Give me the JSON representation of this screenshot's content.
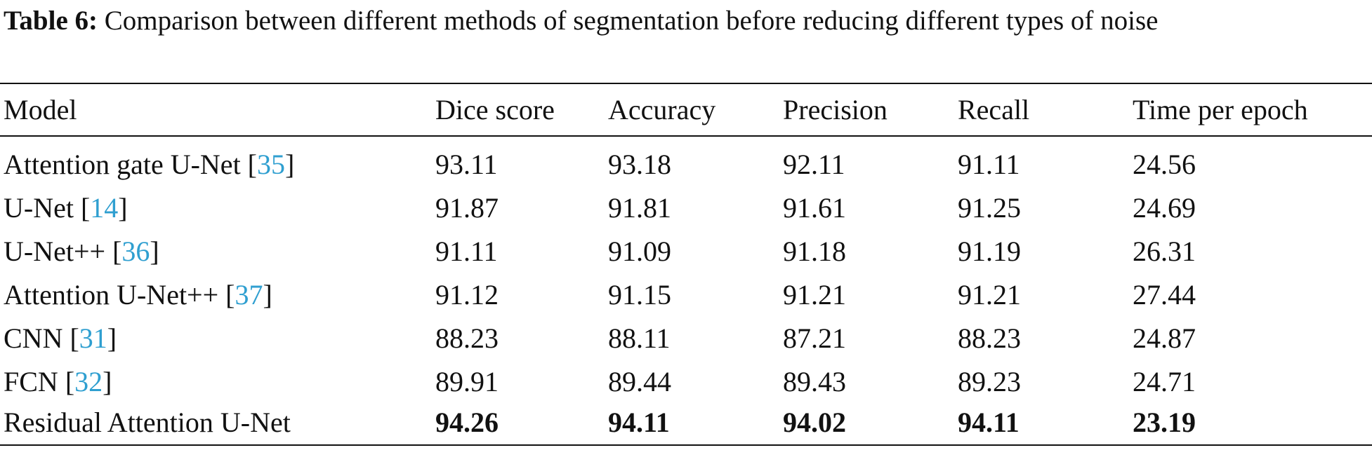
{
  "caption": {
    "label": "Table 6:",
    "text": "Comparison between different methods of segmentation before reducing different types of noise"
  },
  "table": {
    "headers": [
      "Model",
      "Dice score",
      "Accuracy",
      "Precision",
      "Recall",
      "Time per epoch"
    ],
    "rows": [
      {
        "model": "Attention gate U-Net [",
        "ref": "35",
        "close": "]",
        "values": [
          "93.11",
          "93.18",
          "92.11",
          "91.11",
          "24.56"
        ]
      },
      {
        "model": "U-Net [",
        "ref": "14",
        "close": "]",
        "values": [
          "91.87",
          "91.81",
          "91.61",
          "91.25",
          "24.69"
        ]
      },
      {
        "model": "U-Net++ [",
        "ref": "36",
        "close": "]",
        "values": [
          "91.11",
          "91.09",
          "91.18",
          "91.19",
          "26.31"
        ]
      },
      {
        "model": "Attention U-Net++ [",
        "ref": "37",
        "close": "]",
        "values": [
          "91.12",
          "91.15",
          "91.21",
          "91.21",
          "27.44"
        ]
      },
      {
        "model": "CNN [",
        "ref": "31",
        "close": "]",
        "values": [
          "88.23",
          "88.11",
          "87.21",
          "88.23",
          "24.87"
        ]
      },
      {
        "model": "FCN [",
        "ref": "32",
        "close": "]",
        "values": [
          "89.91",
          "89.44",
          "89.43",
          "89.23",
          "24.71"
        ]
      },
      {
        "model": "Residual Attention U-Net",
        "ref": "",
        "close": "",
        "values": [
          "94.26",
          "94.11",
          "94.02",
          "94.11",
          "23.19"
        ],
        "bold_values": true
      }
    ]
  },
  "colors": {
    "text": "#111111",
    "reference_link": "#2f9fd0",
    "background": "#ffffff"
  }
}
